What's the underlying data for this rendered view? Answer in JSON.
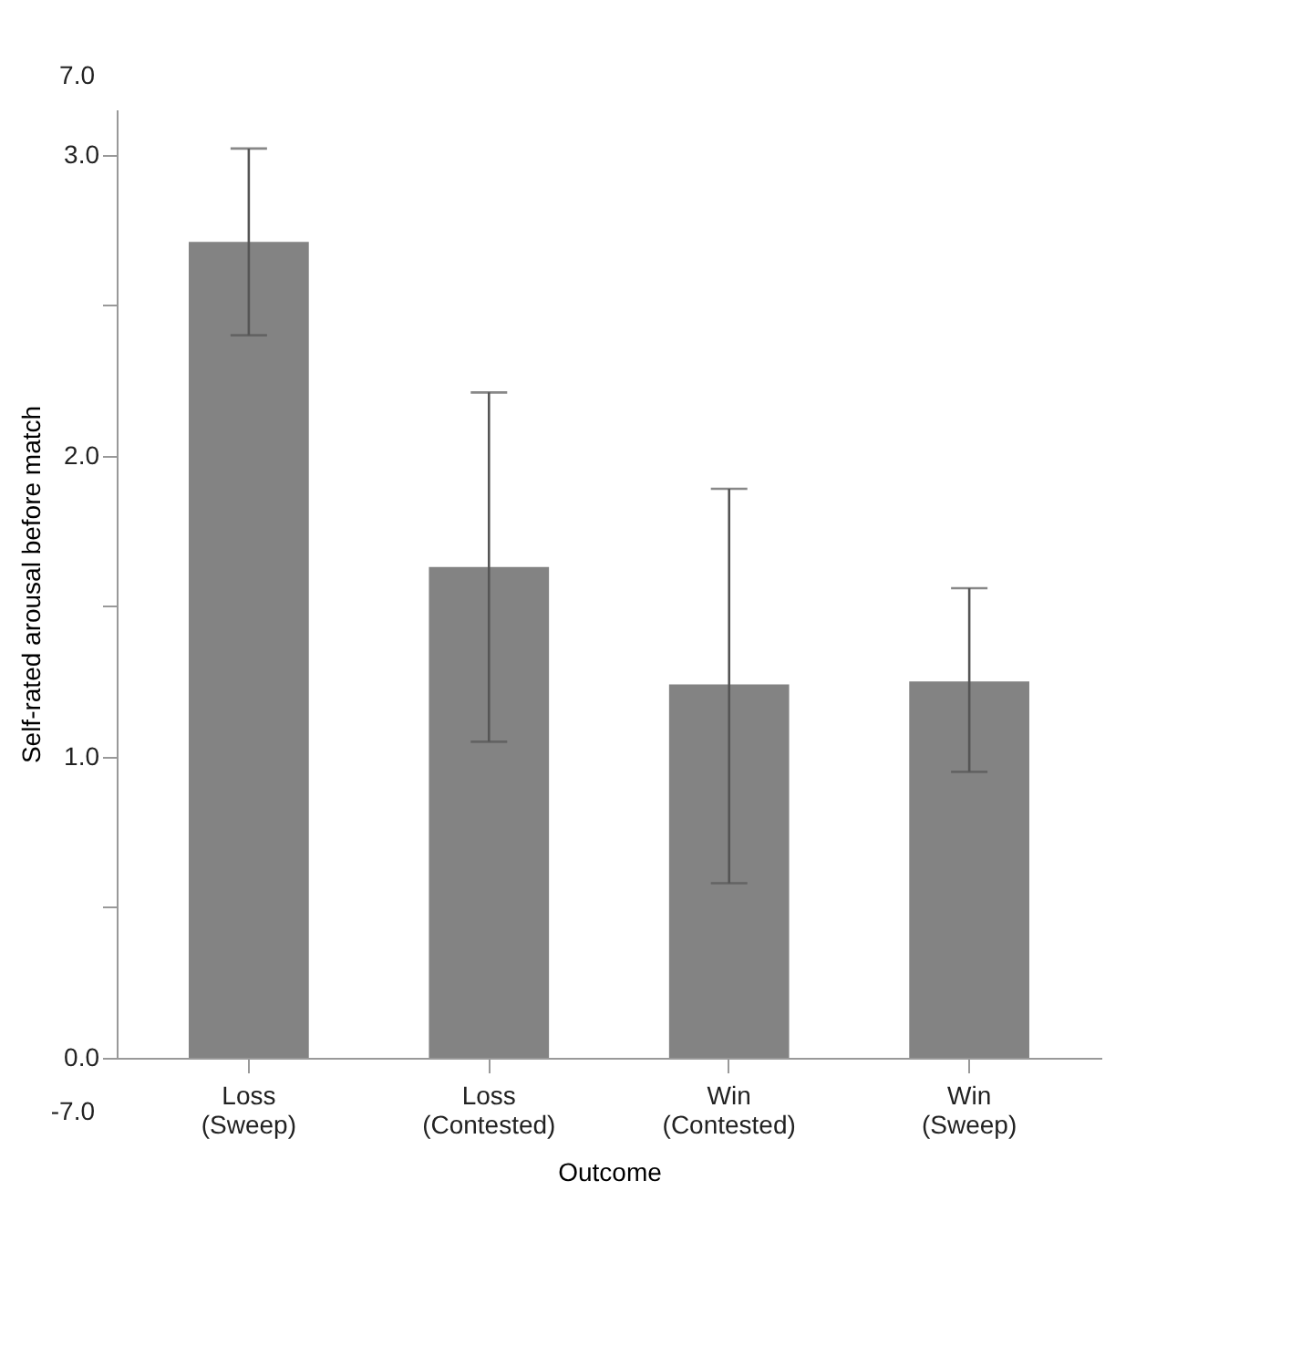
{
  "chart_data": {
    "type": "bar",
    "xlabel": "Outcome",
    "ylabel": "Self-rated arousal before match",
    "categories": [
      "Loss\n(Sweep)",
      "Loss\n(Contested)",
      "Win\n(Contested)",
      "Win\n(Sweep)"
    ],
    "values": [
      2.71,
      1.63,
      1.24,
      1.25
    ],
    "errors": [
      [
        2.4,
        3.02
      ],
      [
        1.05,
        2.21
      ],
      [
        0.58,
        1.89
      ],
      [
        0.95,
        1.56
      ]
    ],
    "color": "#838383",
    "ylim": [
      0,
      3.15
    ],
    "yticks": [
      {
        "value": 0,
        "label": "0.0"
      },
      {
        "value": 0.5,
        "label": null
      },
      {
        "value": 1,
        "label": "1.0"
      },
      {
        "value": 1.5,
        "label": null
      },
      {
        "value": 2,
        "label": "2.0"
      },
      {
        "value": 2.5,
        "label": null
      },
      {
        "value": 3,
        "label": "3.0"
      }
    ],
    "grid": false,
    "annotations": [
      "7.0",
      "-7.0"
    ]
  }
}
